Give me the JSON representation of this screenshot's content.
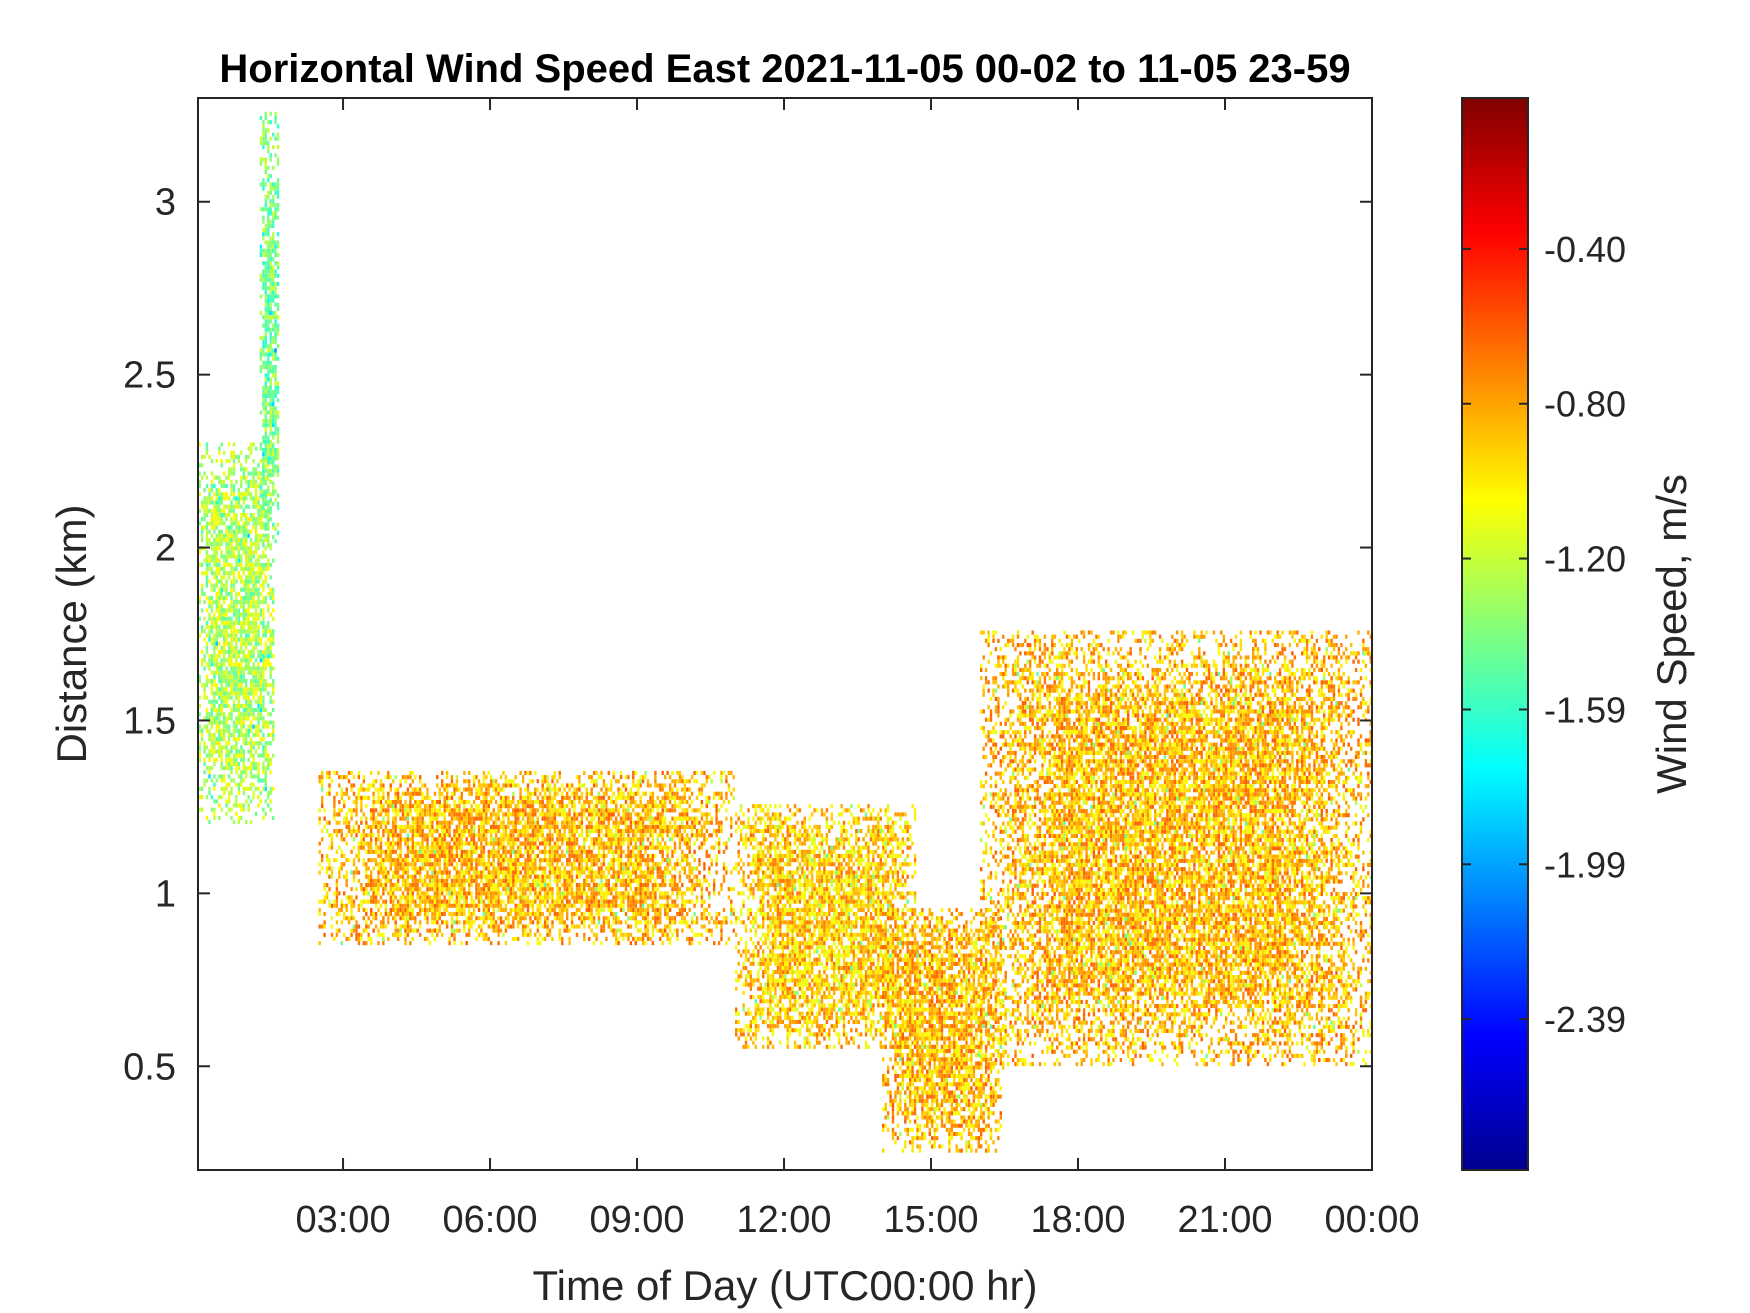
{
  "chart_data": {
    "type": "heatmap",
    "title": "Horizontal Wind Speed East 2021-11-05 00-02 to 11-05 23-59",
    "xlabel": "Time of Day (UTC00:00 hr)",
    "ylabel": "Distance (km)",
    "x_ticks": [
      "03:00",
      "06:00",
      "09:00",
      "12:00",
      "15:00",
      "18:00",
      "21:00",
      "00:00"
    ],
    "x_tick_hours": [
      3,
      6,
      9,
      12,
      15,
      18,
      21,
      24
    ],
    "xlim_hours": [
      0.04,
      24
    ],
    "y_ticks": [
      "0.5",
      "1",
      "1.5",
      "2",
      "2.5",
      "3"
    ],
    "y_tick_values": [
      0.5,
      1.0,
      1.5,
      2.0,
      2.5,
      3.0
    ],
    "ylim": [
      0.2,
      3.3
    ],
    "colorbar": {
      "label": "Wind Speed, m/s",
      "colormap": "jet",
      "range": [
        -2.78,
        -0.01
      ],
      "ticks": [
        "-2.39",
        "-1.99",
        "-1.59",
        "-1.20",
        "-0.80",
        "-0.40"
      ],
      "tick_values": [
        -2.39,
        -1.99,
        -1.59,
        -1.2,
        -0.8,
        -0.4
      ]
    },
    "regions": [
      {
        "name": "early-high-plume",
        "t": [
          0.0,
          1.6
        ],
        "d": [
          1.2,
          2.3
        ],
        "speed": -1.25
      },
      {
        "name": "early-spike",
        "t": [
          1.3,
          1.7
        ],
        "d": [
          2.0,
          3.25
        ],
        "speed": -1.4
      },
      {
        "name": "low-level-band",
        "t": [
          2.5,
          11.0
        ],
        "d": [
          0.85,
          1.35
        ],
        "speed": -0.85
      },
      {
        "name": "morning-descent",
        "t": [
          11.0,
          14.7
        ],
        "d": [
          0.55,
          1.25
        ],
        "speed": -0.9
      },
      {
        "name": "afternoon-minimum",
        "t": [
          14.0,
          16.5
        ],
        "d": [
          0.25,
          0.95
        ],
        "speed": -0.85
      },
      {
        "name": "evening-rise",
        "t": [
          16.0,
          24.0
        ],
        "d": [
          0.5,
          1.75
        ],
        "speed": -0.85
      }
    ],
    "grid": false
  }
}
